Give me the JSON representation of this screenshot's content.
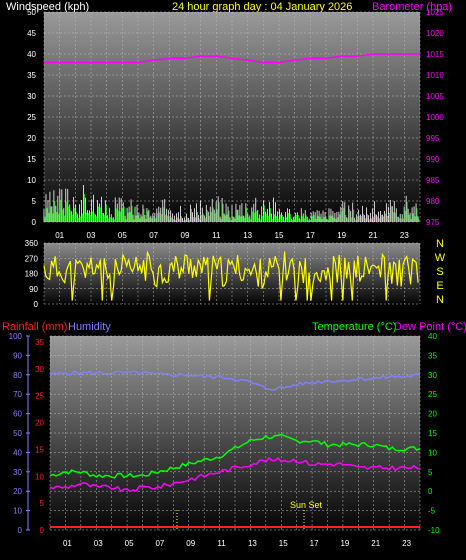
{
  "header": {
    "left": "Windspeed (kph)",
    "center": "24 hour graph day : 04 January 2026",
    "right": "Barometer (hpa)"
  },
  "colors": {
    "wind": "#ffffff",
    "gust": "#00ff00",
    "baro": "#ff00ff",
    "dir": "#ffff00",
    "rain": "#ff2020",
    "hum": "#8080ff",
    "temp": "#00ff00",
    "dew": "#ff00ff"
  },
  "top_axis": {
    "left_ticks": [
      "50",
      "45",
      "40",
      "35",
      "30",
      "25",
      "20",
      "15",
      "10",
      "5",
      "0"
    ],
    "right_ticks": [
      "1025",
      "1020",
      "1015",
      "1010",
      "1005",
      "1000",
      "995",
      "990",
      "985",
      "980",
      "975"
    ],
    "x_ticks": [
      "01",
      "03",
      "05",
      "07",
      "09",
      "11",
      "13",
      "15",
      "17",
      "19",
      "21",
      "23"
    ]
  },
  "dir_axis": {
    "left_ticks": [
      "360",
      "270",
      "180",
      "90",
      "0"
    ],
    "compass": [
      "N",
      "W",
      "S",
      "E",
      "N"
    ]
  },
  "bottom_header": {
    "rain": "Rainfall (mm)",
    "humidity": "Humidity",
    "temp": "Temperature (°C)",
    "dew": "Dew Point (°C)"
  },
  "bottom_axis": {
    "hum_ticks": [
      "100",
      "90",
      "80",
      "70",
      "60",
      "50",
      "40",
      "30",
      "20",
      "10",
      "0"
    ],
    "rain_ticks": [
      "35",
      "30",
      "25",
      "20",
      "15",
      "10",
      "5",
      "0"
    ],
    "temp_ticks": [
      "40",
      "35",
      "30",
      "25",
      "20",
      "15",
      "10",
      "5",
      "0",
      "-5",
      "-10"
    ],
    "x_ticks": [
      "01",
      "03",
      "05",
      "07",
      "09",
      "11",
      "13",
      "15",
      "17",
      "19",
      "21",
      "23"
    ],
    "annotation": "Sun Set"
  },
  "chart_data": [
    {
      "type": "line",
      "title": "24 hour graph day : 04 January 2026",
      "xlabel": "",
      "ylabel": "Windspeed (kph)",
      "y2label": "Barometer (hpa)",
      "ylim": [
        0,
        50
      ],
      "y2lim": [
        975,
        1025
      ],
      "x": [
        0,
        1,
        2,
        3,
        4,
        5,
        6,
        7,
        8,
        9,
        10,
        11,
        12,
        13,
        14,
        15,
        16,
        17,
        18,
        19,
        20,
        21,
        22,
        23,
        24
      ],
      "series": [
        {
          "name": "Windspeed (kph)",
          "values": [
            4,
            5,
            6,
            5,
            3,
            4,
            3,
            2,
            4,
            3,
            3,
            4,
            3,
            4,
            5,
            3,
            2,
            2,
            2,
            3,
            3,
            3,
            3,
            4,
            4
          ]
        },
        {
          "name": "Barometer (hpa)",
          "values": [
            1013,
            1013,
            1013,
            1013,
            1013,
            1013,
            1013,
            1013.5,
            1014,
            1014,
            1014.5,
            1014.5,
            1014,
            1013.5,
            1013,
            1013,
            1013.5,
            1014,
            1014,
            1014.5,
            1014.5,
            1015,
            1015,
            1015,
            1015
          ]
        }
      ]
    },
    {
      "type": "line",
      "title": "",
      "xlabel": "",
      "ylabel": "",
      "ylim": [
        0,
        360
      ],
      "x": [
        0,
        1,
        2,
        3,
        4,
        5,
        6,
        7,
        8,
        9,
        10,
        11,
        12,
        13,
        14,
        15,
        16,
        17,
        18,
        19,
        20,
        21,
        22,
        23,
        24
      ],
      "series": [
        {
          "name": "",
          "values": [
            200,
            210,
            190,
            230,
            180,
            200,
            220,
            190,
            210,
            230,
            200,
            190,
            210,
            180,
            200,
            220,
            190,
            200,
            210,
            190,
            200,
            210,
            190,
            200,
            210
          ]
        }
      ]
    },
    {
      "type": "line",
      "title": "",
      "xlabel": "",
      "ylabel": "Humidity",
      "ylim": [
        0,
        100
      ],
      "y2lim": [
        -10,
        40
      ],
      "x": [
        0,
        1,
        2,
        3,
        4,
        5,
        6,
        7,
        8,
        9,
        10,
        11,
        12,
        13,
        14,
        15,
        16,
        17,
        18,
        19,
        20,
        21,
        22,
        23,
        24
      ],
      "series": [
        {
          "name": "Rainfall (mm)",
          "values": [
            0,
            0,
            0,
            0,
            0,
            0,
            0,
            0,
            0,
            0,
            0,
            0,
            0,
            0,
            0,
            0,
            0,
            0,
            0,
            0,
            0,
            0,
            0,
            0,
            0
          ]
        },
        {
          "name": "Humidity",
          "values": [
            80,
            81,
            81,
            81,
            81,
            81,
            81,
            80,
            80,
            80,
            79,
            79,
            78,
            76,
            73,
            73,
            75,
            76,
            77,
            77,
            78,
            78,
            79,
            79,
            80
          ]
        },
        {
          "name": "Temperature (°C)",
          "values": [
            4,
            5,
            5,
            4,
            4,
            4,
            4,
            5,
            6,
            7,
            8,
            9,
            11,
            13,
            14,
            14,
            13,
            13,
            12,
            12,
            12,
            12,
            11,
            11,
            11
          ]
        },
        {
          "name": "Dew Point (°C)",
          "values": [
            1,
            1,
            2,
            1,
            1,
            0,
            1,
            1,
            2,
            3,
            4,
            5,
            6,
            7,
            8,
            8,
            8,
            7,
            7,
            7,
            6,
            6,
            6,
            6,
            6
          ]
        }
      ]
    }
  ]
}
